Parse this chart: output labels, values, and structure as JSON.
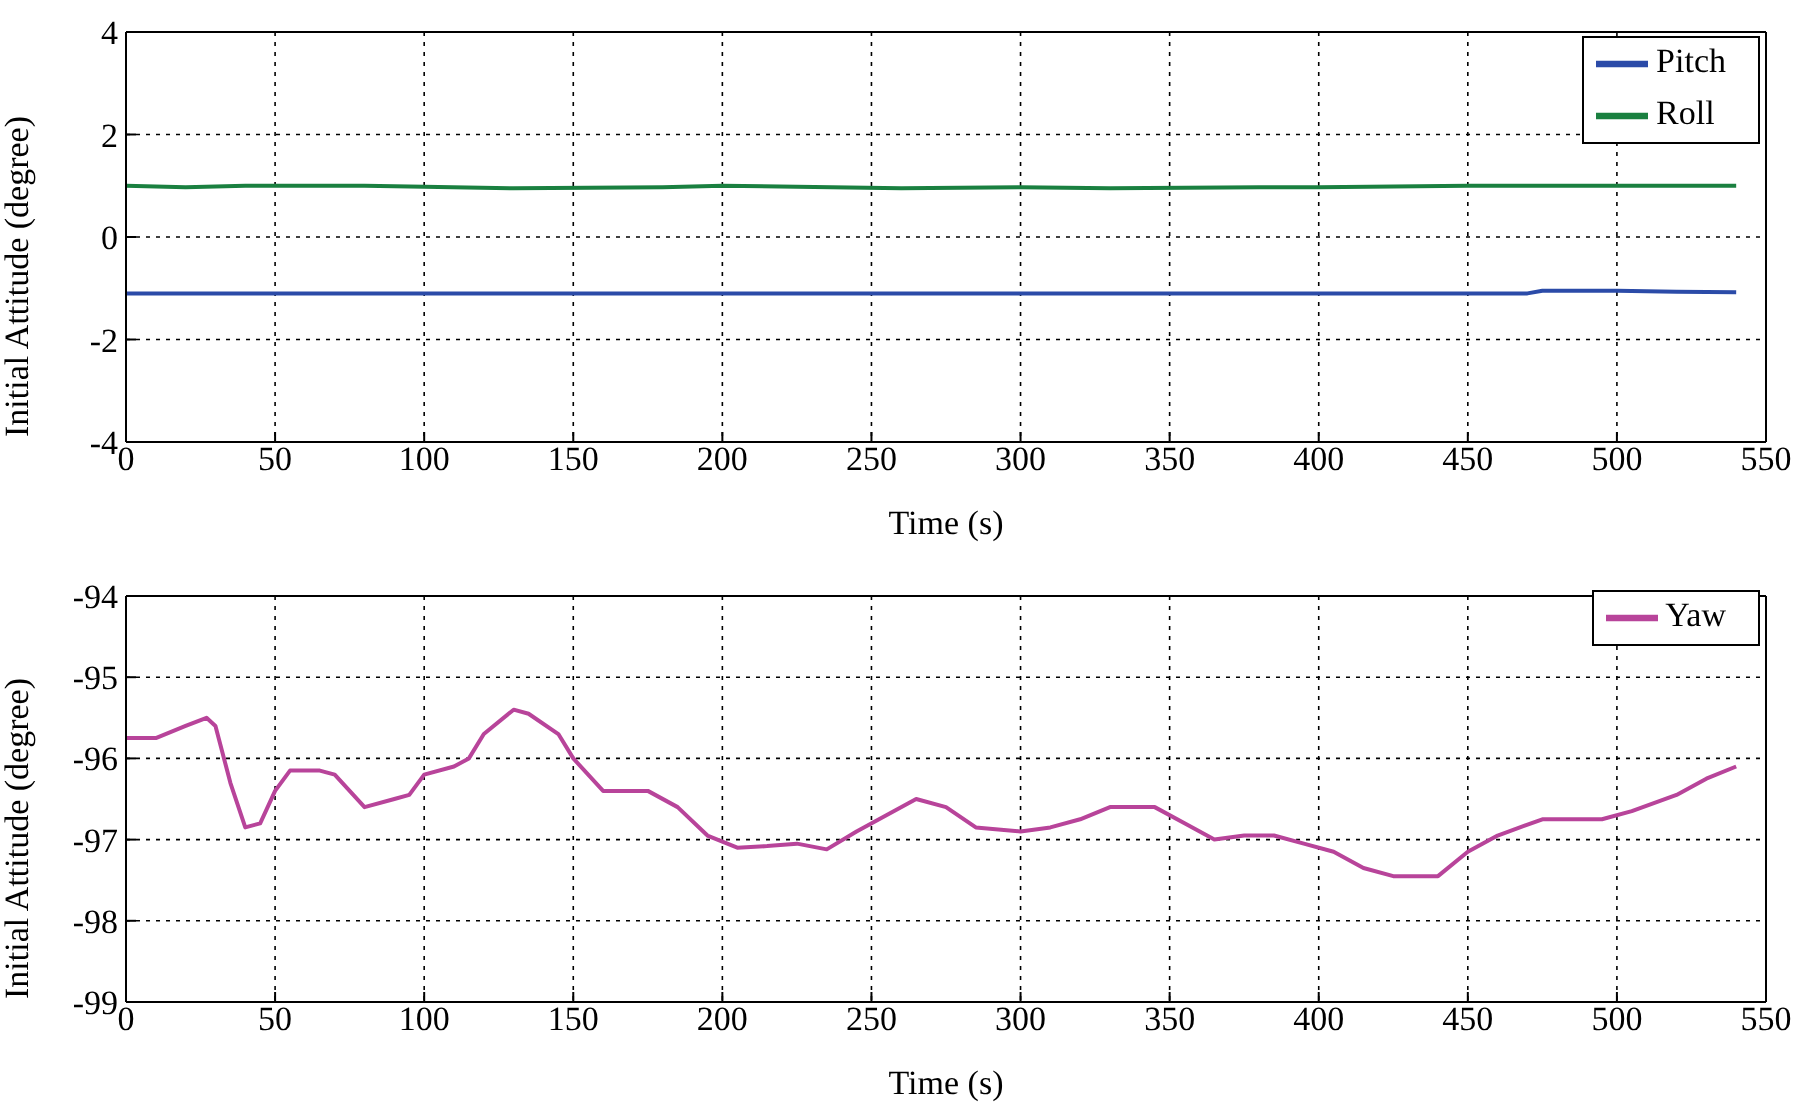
{
  "chart_data": [
    {
      "type": "line",
      "xlabel": "Time (s)",
      "ylabel": "Initial Attitude (degree)",
      "xlim": [
        0,
        550
      ],
      "xticks": [
        0,
        50,
        100,
        150,
        200,
        250,
        300,
        350,
        400,
        450,
        500,
        550
      ],
      "ylim": [
        -4,
        4
      ],
      "yticks": [
        -4,
        -2,
        0,
        2,
        4
      ],
      "grid": true,
      "legend": "top right",
      "series": [
        {
          "name": "Pitch",
          "color": "#2b4ba8",
          "x": [
            0,
            100,
            200,
            300,
            400,
            470,
            475,
            500,
            520,
            540
          ],
          "values": [
            -1.1,
            -1.1,
            -1.1,
            -1.1,
            -1.1,
            -1.1,
            -1.05,
            -1.05,
            -1.07,
            -1.08
          ]
        },
        {
          "name": "Roll",
          "color": "#1a8040",
          "x": [
            0,
            20,
            40,
            80,
            100,
            130,
            180,
            200,
            260,
            300,
            330,
            380,
            400,
            450,
            500,
            540
          ],
          "values": [
            1.0,
            0.97,
            1.0,
            1.0,
            0.98,
            0.95,
            0.97,
            1.0,
            0.95,
            0.97,
            0.95,
            0.97,
            0.97,
            1.0,
            1.0,
            1.0
          ]
        }
      ]
    },
    {
      "type": "line",
      "xlabel": "Time (s)",
      "ylabel": "Initial Attitude (degree)",
      "xlim": [
        0,
        550
      ],
      "xticks": [
        0,
        50,
        100,
        150,
        200,
        250,
        300,
        350,
        400,
        450,
        500,
        550
      ],
      "ylim": [
        -99,
        -94
      ],
      "yticks": [
        -99,
        -98,
        -97,
        -96,
        -95,
        -94
      ],
      "grid": true,
      "legend": "top right",
      "series": [
        {
          "name": "Yaw",
          "color": "#b8449a",
          "x": [
            0,
            10,
            20,
            27,
            30,
            35,
            40,
            45,
            50,
            55,
            65,
            70,
            80,
            90,
            95,
            100,
            110,
            115,
            120,
            130,
            135,
            145,
            150,
            160,
            170,
            175,
            185,
            195,
            205,
            215,
            225,
            235,
            245,
            255,
            265,
            275,
            285,
            300,
            310,
            320,
            330,
            345,
            355,
            365,
            375,
            385,
            395,
            405,
            415,
            425,
            440,
            450,
            460,
            475,
            495,
            505,
            520,
            530,
            540
          ],
          "values": [
            -95.75,
            -95.75,
            -95.6,
            -95.5,
            -95.6,
            -96.3,
            -96.85,
            -96.8,
            -96.4,
            -96.15,
            -96.15,
            -96.2,
            -96.6,
            -96.5,
            -96.45,
            -96.2,
            -96.1,
            -96.0,
            -95.7,
            -95.4,
            -95.45,
            -95.7,
            -96.0,
            -96.4,
            -96.4,
            -96.4,
            -96.6,
            -96.95,
            -97.1,
            -97.08,
            -97.05,
            -97.12,
            -96.9,
            -96.7,
            -96.5,
            -96.6,
            -96.85,
            -96.9,
            -96.85,
            -96.75,
            -96.6,
            -96.6,
            -96.8,
            -97.0,
            -96.95,
            -96.95,
            -97.05,
            -97.15,
            -97.35,
            -97.45,
            -97.45,
            -97.15,
            -96.95,
            -96.75,
            -96.75,
            -96.65,
            -96.45,
            -96.25,
            -96.1
          ]
        }
      ]
    }
  ]
}
